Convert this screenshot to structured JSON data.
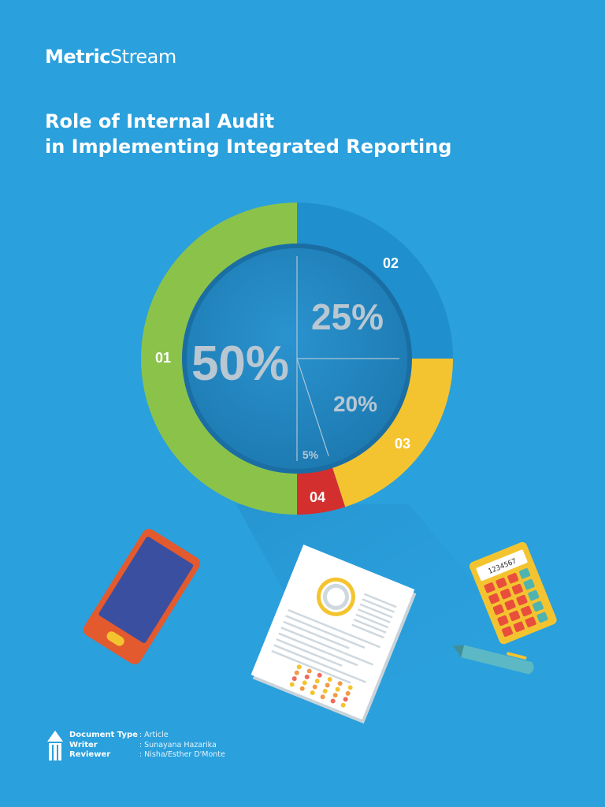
{
  "brand": {
    "name_bold": "Metric",
    "name_regular": "Stream"
  },
  "title": {
    "line1": "Role of Internal Audit",
    "line2": "in Implementing Integrated Reporting"
  },
  "chart_data": {
    "type": "pie",
    "segments": [
      {
        "label": "01",
        "value": 50,
        "value_label": "50%",
        "color": "#8bc34a"
      },
      {
        "label": "02",
        "value": 25,
        "value_label": "25%",
        "color": "#1f8fce"
      },
      {
        "label": "03",
        "value": 20,
        "value_label": "20%",
        "color": "#f4c430"
      },
      {
        "label": "04",
        "value": 5,
        "value_label": "5%",
        "color": "#d32f2f"
      }
    ]
  },
  "calculator": {
    "display": "1234567"
  },
  "colors": {
    "background": "#2aa0dd",
    "inner_disc": "#2287c0"
  },
  "meta": {
    "document_type_label": "Document Type",
    "document_type_value": ": Article",
    "writer_label": "Writer",
    "writer_value": ": Sunayana Hazarika",
    "reviewer_label": "Reviewer",
    "reviewer_value": ": Nisha/Esther D'Monte"
  }
}
